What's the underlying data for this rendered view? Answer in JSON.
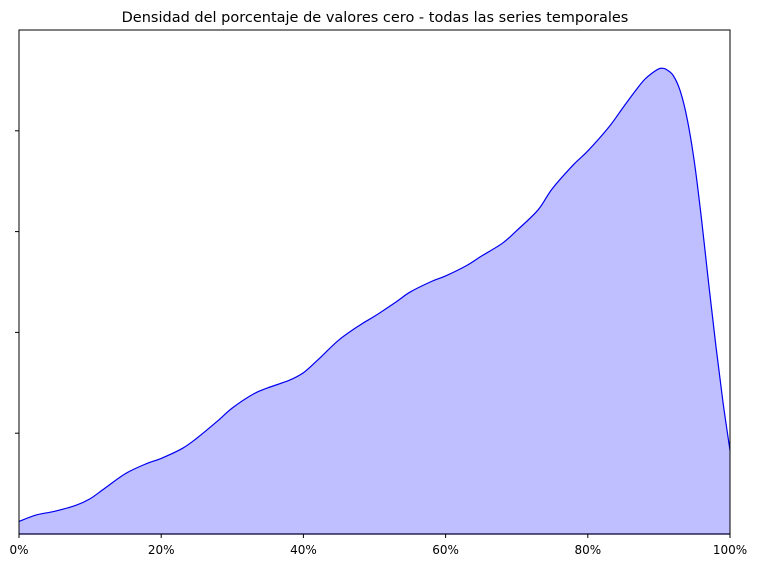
{
  "chart_data": {
    "type": "area",
    "title": "Densidad del porcentaje de valores cero - todas las series temporales",
    "xlabel": "",
    "ylabel": "",
    "xlim": [
      0,
      100
    ],
    "ylim": [
      0,
      1
    ],
    "x_ticks": [
      0,
      20,
      40,
      60,
      80,
      100
    ],
    "x_tick_labels": [
      "0%",
      "20%",
      "40%",
      "60%",
      "80%",
      "100%"
    ],
    "y_ticks": [
      0.2,
      0.4,
      0.6,
      0.8
    ],
    "y_tick_labels": [
      "",
      "",
      "",
      ""
    ],
    "grid": false,
    "legend": "none",
    "colors": {
      "fill": "#bfbfff",
      "line": "#0000ee"
    },
    "series": [
      {
        "x": [
          0,
          2.5,
          5,
          8,
          10,
          12,
          15,
          18,
          20,
          23,
          25,
          28,
          30,
          33,
          35,
          38,
          40,
          42,
          45,
          48,
          50,
          53,
          55,
          58,
          60,
          63,
          65,
          68,
          70,
          73,
          75,
          78,
          80,
          83,
          85,
          87,
          88,
          89,
          90,
          90.5,
          91,
          92,
          93,
          94,
          95,
          96,
          97,
          98,
          99,
          100
        ],
        "values": [
          0.025,
          0.038,
          0.045,
          0.057,
          0.07,
          0.09,
          0.12,
          0.14,
          0.15,
          0.17,
          0.19,
          0.225,
          0.25,
          0.278,
          0.29,
          0.305,
          0.32,
          0.345,
          0.385,
          0.415,
          0.432,
          0.46,
          0.48,
          0.501,
          0.512,
          0.533,
          0.551,
          0.577,
          0.602,
          0.643,
          0.685,
          0.733,
          0.76,
          0.808,
          0.847,
          0.885,
          0.902,
          0.914,
          0.923,
          0.924,
          0.922,
          0.91,
          0.879,
          0.822,
          0.737,
          0.624,
          0.497,
          0.375,
          0.263,
          0.166
        ]
      }
    ]
  }
}
